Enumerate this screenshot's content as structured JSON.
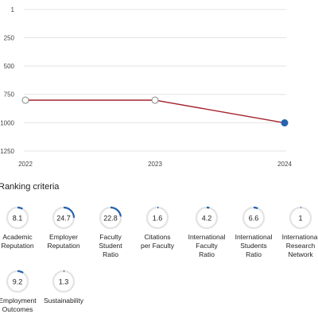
{
  "chart_data": {
    "type": "line",
    "x": [
      "2022",
      "2023",
      "2024"
    ],
    "y_ticks": [
      "1",
      "250",
      "500",
      "750",
      "1000",
      "1250"
    ],
    "ylim": [
      1,
      1250
    ],
    "y_inverted": true,
    "grid": true,
    "series": [
      {
        "values": [
          801,
          801,
          1001
        ],
        "color": "#a3222d",
        "open_points": [
          true,
          true,
          false
        ]
      }
    ],
    "marker_color_current": "#2563b0"
  },
  "ranking_criteria": {
    "title": "Ranking criteria",
    "ring_color": "#2563b0",
    "ring_track_color": "#e3e3e3",
    "items": [
      {
        "score": "8.1",
        "fill": 0.081,
        "label_lines": [
          "Academic",
          "Reputation"
        ]
      },
      {
        "score": "24.7",
        "fill": 0.247,
        "label_lines": [
          "Employer",
          "Reputation"
        ]
      },
      {
        "score": "22.8",
        "fill": 0.228,
        "label_lines": [
          "Faculty",
          "Student",
          "Ratio"
        ]
      },
      {
        "score": "1.6",
        "fill": 0.016,
        "label_lines": [
          "Citations",
          "per Faculty"
        ]
      },
      {
        "score": "4.2",
        "fill": 0.042,
        "label_lines": [
          "International",
          "Faculty",
          "Ratio"
        ]
      },
      {
        "score": "6.6",
        "fill": 0.066,
        "label_lines": [
          "International",
          "Students",
          "Ratio"
        ]
      },
      {
        "score": "1",
        "fill": 0.01,
        "label_lines": [
          "International",
          "Research",
          "Network"
        ]
      },
      {
        "score": "9.2",
        "fill": 0.092,
        "label_lines": [
          "Employment",
          "Outcomes"
        ]
      },
      {
        "score": "1.3",
        "fill": 0.013,
        "label_lines": [
          "Sustainability"
        ]
      }
    ]
  }
}
